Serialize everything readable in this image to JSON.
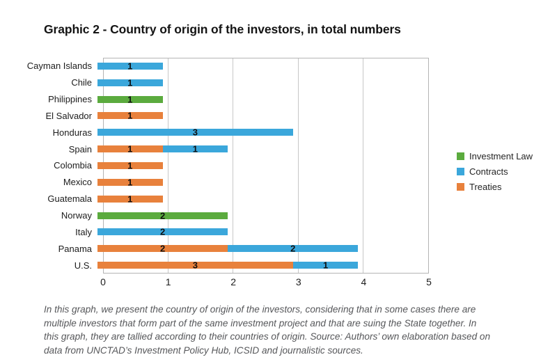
{
  "title": "Graphic 2 - Country of origin of the investors, in total numbers",
  "colors": {
    "investment_law_green": "#5bab3e",
    "contracts_blue": "#3ba7db",
    "treaties_orange": "#e8813c",
    "grid_gray": "#c7c7c7",
    "plot_border_gray": "#b4b4b4",
    "caption_gray": "#56575a",
    "title_black": "#141414"
  },
  "chart_data": {
    "type": "bar",
    "orientation": "horizontal",
    "stacked": true,
    "title": "Graphic 2 - Country of origin of the investors, in total numbers",
    "xlabel": "",
    "ylabel": "",
    "xlim": [
      0,
      5
    ],
    "xticks": [
      0,
      1,
      2,
      3,
      4,
      5
    ],
    "grid": "vertical",
    "legend_position": "right",
    "series_colors": {
      "Investment Law": "#5bab3e",
      "Contracts": "#3ba7db",
      "Treaties": "#e8813c"
    },
    "categories": [
      "Cayman Islands",
      "Chile",
      "Philippines",
      "El Salvador",
      "Honduras",
      "Spain",
      "Colombia",
      "Mexico",
      "Guatemala",
      "Norway",
      "Italy",
      "Panama",
      "U.S."
    ],
    "bars": [
      {
        "category": "Cayman Islands",
        "segments": [
          {
            "series": "Contracts",
            "value": 1
          }
        ]
      },
      {
        "category": "Chile",
        "segments": [
          {
            "series": "Contracts",
            "value": 1
          }
        ]
      },
      {
        "category": "Philippines",
        "segments": [
          {
            "series": "Investment Law",
            "value": 1
          }
        ]
      },
      {
        "category": "El Salvador",
        "segments": [
          {
            "series": "Treaties",
            "value": 1
          }
        ]
      },
      {
        "category": "Honduras",
        "segments": [
          {
            "series": "Contracts",
            "value": 3
          }
        ]
      },
      {
        "category": "Spain",
        "segments": [
          {
            "series": "Treaties",
            "value": 1
          },
          {
            "series": "Contracts",
            "value": 1
          }
        ]
      },
      {
        "category": "Colombia",
        "segments": [
          {
            "series": "Treaties",
            "value": 1
          }
        ]
      },
      {
        "category": "Mexico",
        "segments": [
          {
            "series": "Treaties",
            "value": 1
          }
        ]
      },
      {
        "category": "Guatemala",
        "segments": [
          {
            "series": "Treaties",
            "value": 1
          }
        ]
      },
      {
        "category": "Norway",
        "segments": [
          {
            "series": "Investment Law",
            "value": 2
          }
        ]
      },
      {
        "category": "Italy",
        "segments": [
          {
            "series": "Contracts",
            "value": 2
          }
        ]
      },
      {
        "category": "Panama",
        "segments": [
          {
            "series": "Treaties",
            "value": 2
          },
          {
            "series": "Contracts",
            "value": 2
          }
        ]
      },
      {
        "category": "U.S.",
        "segments": [
          {
            "series": "Treaties",
            "value": 3
          },
          {
            "series": "Contracts",
            "value": 1
          }
        ]
      }
    ]
  },
  "legend": {
    "items": [
      {
        "label": "Investment Law"
      },
      {
        "label": "Contracts"
      },
      {
        "label": "Treaties"
      }
    ]
  },
  "caption": {
    "lines": [
      "In this graph, we present the country of origin of the investors, considering that in some cases there are",
      "multiple investors that form part of the same investment project and that are suing the State together. In",
      "this graph, they are tallied according to their countries of origin. Source: Authors’ own elaboration based on",
      "data from UNCTAD’s Investment Policy Hub, ICSID and journalistic sources."
    ]
  }
}
